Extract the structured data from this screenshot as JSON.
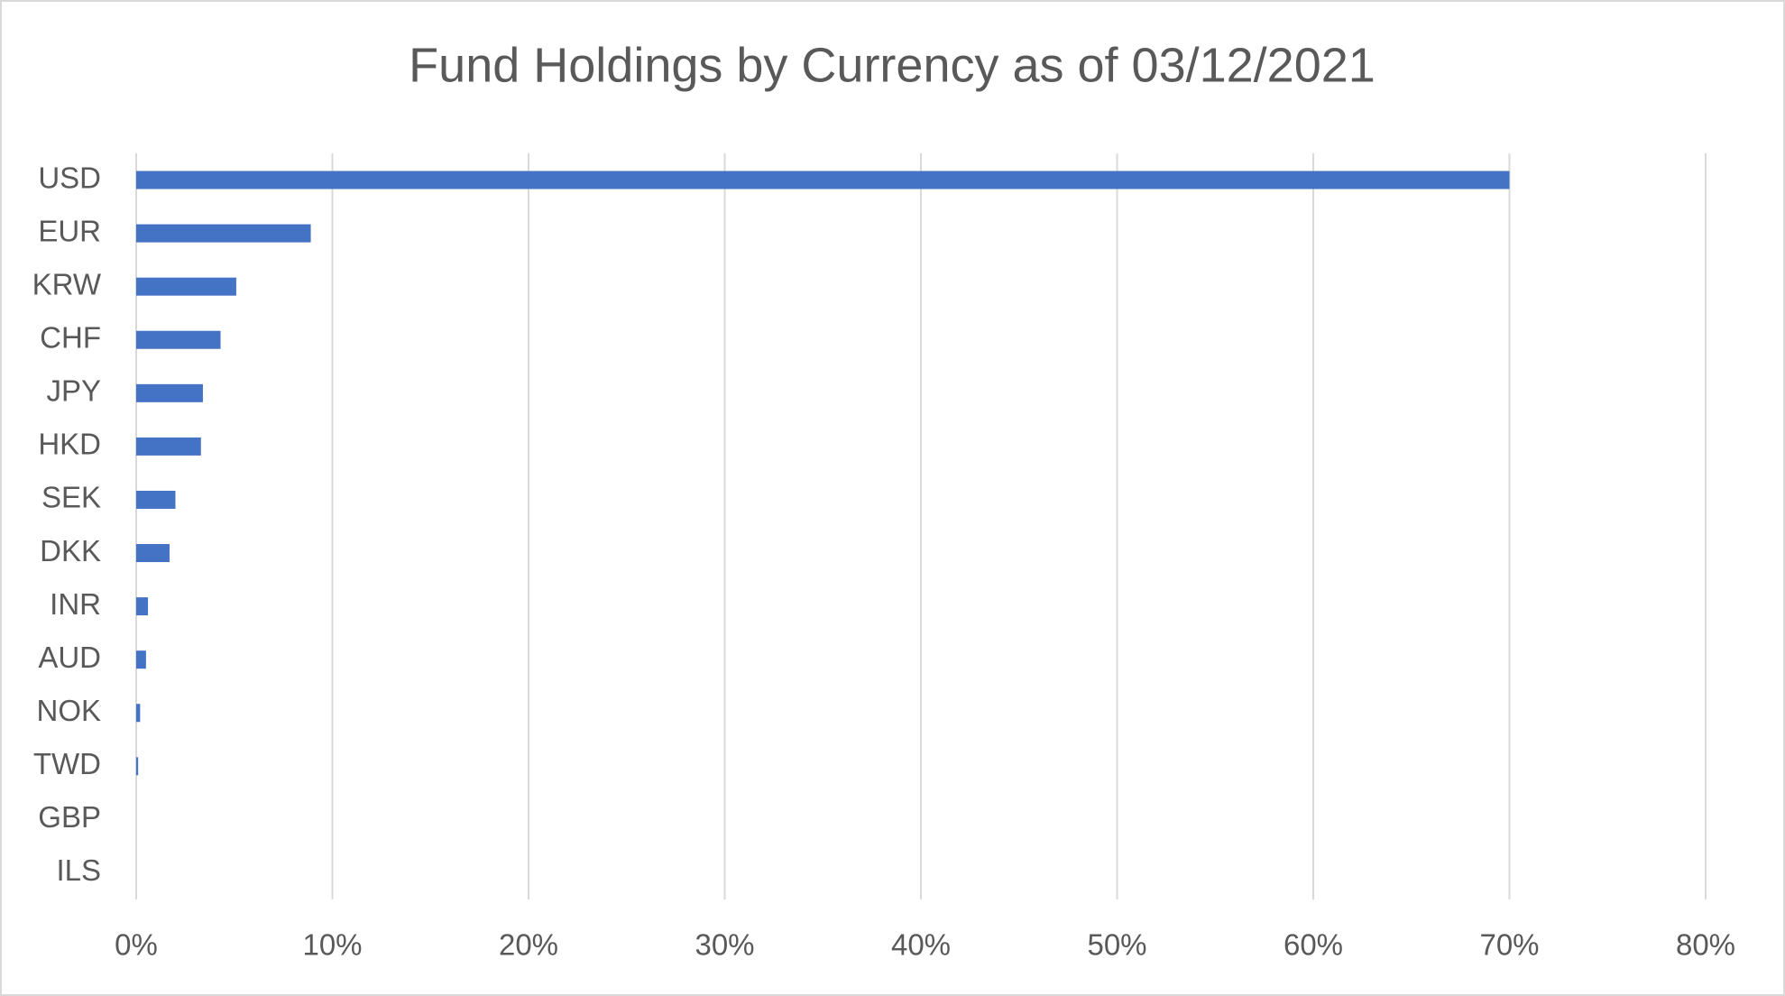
{
  "chart_data": {
    "type": "barh",
    "title": "Fund Holdings by Currency as of 03/12/2021",
    "categories": [
      "USD",
      "EUR",
      "KRW",
      "CHF",
      "JPY",
      "HKD",
      "SEK",
      "DKK",
      "INR",
      "AUD",
      "NOK",
      "TWD",
      "GBP",
      "ILS"
    ],
    "values": [
      70,
      8.9,
      5.1,
      4.3,
      3.4,
      3.3,
      2.0,
      1.7,
      0.6,
      0.5,
      0.2,
      0.1,
      0,
      0
    ],
    "color": "#4472c4",
    "xlim": [
      0,
      80
    ],
    "xticks": [
      {
        "value": 0,
        "label": "0%"
      },
      {
        "value": 10,
        "label": "10%"
      },
      {
        "value": 20,
        "label": "20%"
      },
      {
        "value": 30,
        "label": "30%"
      },
      {
        "value": 40,
        "label": "40%"
      },
      {
        "value": 50,
        "label": "50%"
      },
      {
        "value": 60,
        "label": "60%"
      },
      {
        "value": 70,
        "label": "70%"
      },
      {
        "value": 80,
        "label": "80%"
      }
    ],
    "grid": true
  }
}
